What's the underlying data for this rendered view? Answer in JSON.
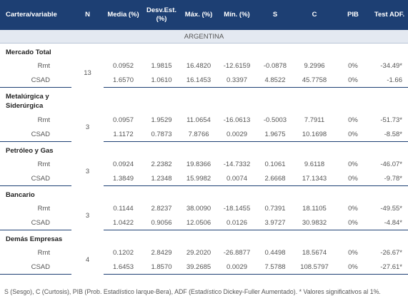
{
  "table": {
    "header": [
      "Cartera/variable",
      "N",
      "Media (%)",
      "Desv.Est. (%)",
      "Máx. (%)",
      "Mín. (%)",
      "S",
      "C",
      "PIB",
      "Test ADF."
    ],
    "section": "ARGENTINA",
    "groups": [
      {
        "name": "Mercado Total",
        "n": "13",
        "rows": [
          [
            "Rmt",
            "0.0952",
            "1.9815",
            "16.4820",
            "-12.6159",
            "-0.0878",
            "9.2996",
            "0%",
            "-34.49*"
          ],
          [
            "CSAD",
            "1.6570",
            "1.0610",
            "16.1453",
            "0.3397",
            "4.8522",
            "45.7758",
            "0%",
            "-1.66"
          ]
        ]
      },
      {
        "name": "Metalúrgica y Siderúrgica",
        "n": "3",
        "rows": [
          [
            "Rmt",
            "0.0957",
            "1.9529",
            "11.0654",
            "-16.0613",
            "-0.5003",
            "7.7911",
            "0%",
            "-51.73*"
          ],
          [
            "CSAD",
            "1.1172",
            "0.7873",
            "7.8766",
            "0.0029",
            "1.9675",
            "10.1698",
            "0%",
            "-8.58*"
          ]
        ]
      },
      {
        "name": "Petróleo y Gas",
        "n": "3",
        "rows": [
          [
            "Rmt",
            "0.0924",
            "2.2382",
            "19.8366",
            "-14.7332",
            "0.1061",
            "9.6118",
            "0%",
            "-46.07*"
          ],
          [
            "CSAD",
            "1.3849",
            "1.2348",
            "15.9982",
            "0.0074",
            "2.6668",
            "17.1343",
            "0%",
            "-9.78*"
          ]
        ]
      },
      {
        "name": "Bancario",
        "n": "3",
        "rows": [
          [
            "Rmt",
            "0.1144",
            "2.8237",
            "38.0090",
            "-18.1455",
            "0.7391",
            "18.1105",
            "0%",
            "-49.55*"
          ],
          [
            "CSAD",
            "1.0422",
            "0.9056",
            "12.0506",
            "0.0126",
            "3.9727",
            "30.9832",
            "0%",
            "-4.84*"
          ]
        ]
      },
      {
        "name": "Demás Empresas",
        "n": "4",
        "rows": [
          [
            "Rmt",
            "0.1202",
            "2.8429",
            "29.2020",
            "-26.8877",
            "0.4498",
            "18.5674",
            "0%",
            "-26.67*"
          ],
          [
            "CSAD",
            "1.6453",
            "1.8570",
            "39.2685",
            "0.0029",
            "7.5788",
            "108.5797",
            "0%",
            "-27.61*"
          ]
        ]
      }
    ],
    "footnote": "S (Sesgo), C (Curtosis), PIB (Prob. Estadístico Iarque-Bera), ADF (Estadístico Dickey-Fuller Aumentado). * Valores significativos al 1%."
  }
}
